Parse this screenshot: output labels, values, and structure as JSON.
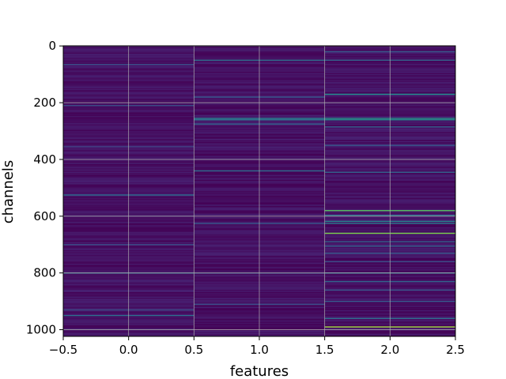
{
  "chart_data": {
    "type": "heatmap",
    "title": "",
    "xlabel": "features",
    "ylabel": "channels",
    "xlim": [
      -0.5,
      2.5
    ],
    "ylim": [
      1023.5,
      -0.5
    ],
    "n_channels": 1024,
    "n_features": 3,
    "grid": true,
    "colormap": "viridis",
    "xticks": [
      {
        "value": -0.5,
        "label": "−0.5"
      },
      {
        "value": 0.0,
        "label": "0.0"
      },
      {
        "value": 0.5,
        "label": "0.5"
      },
      {
        "value": 1.0,
        "label": "1.0"
      },
      {
        "value": 1.5,
        "label": "1.5"
      },
      {
        "value": 2.0,
        "label": "2.0"
      },
      {
        "value": 2.5,
        "label": "2.5"
      }
    ],
    "yticks": [
      {
        "value": 0,
        "label": "0"
      },
      {
        "value": 200,
        "label": "200"
      },
      {
        "value": 400,
        "label": "400"
      },
      {
        "value": 600,
        "label": "600"
      },
      {
        "value": 800,
        "label": "800"
      },
      {
        "value": 1000,
        "label": "1000"
      }
    ],
    "background_value_range": [
      0.0,
      0.12
    ],
    "highlights": [
      {
        "feature": 0,
        "channel": 65,
        "value": 0.3
      },
      {
        "feature": 0,
        "channel": 210,
        "value": 0.3
      },
      {
        "feature": 0,
        "channel": 355,
        "value": 0.25
      },
      {
        "feature": 0,
        "channel": 525,
        "value": 0.45
      },
      {
        "feature": 0,
        "channel": 700,
        "value": 0.3
      },
      {
        "feature": 0,
        "channel": 800,
        "value": 0.45
      },
      {
        "feature": 0,
        "channel": 930,
        "value": 0.3
      },
      {
        "feature": 0,
        "channel": 950,
        "value": 0.45
      },
      {
        "feature": 1,
        "channel": 50,
        "value": 0.45
      },
      {
        "feature": 1,
        "channel": 180,
        "value": 0.35
      },
      {
        "feature": 1,
        "channel": 255,
        "value": 0.55
      },
      {
        "feature": 1,
        "channel": 260,
        "value": 0.5
      },
      {
        "feature": 1,
        "channel": 275,
        "value": 0.4
      },
      {
        "feature": 1,
        "channel": 440,
        "value": 0.45
      },
      {
        "feature": 1,
        "channel": 625,
        "value": 0.35
      },
      {
        "feature": 1,
        "channel": 800,
        "value": 0.3
      },
      {
        "feature": 1,
        "channel": 910,
        "value": 0.3
      },
      {
        "feature": 2,
        "channel": 20,
        "value": 0.35
      },
      {
        "feature": 2,
        "channel": 50,
        "value": 0.4
      },
      {
        "feature": 2,
        "channel": 170,
        "value": 0.6
      },
      {
        "feature": 2,
        "channel": 255,
        "value": 0.65
      },
      {
        "feature": 2,
        "channel": 260,
        "value": 0.6
      },
      {
        "feature": 2,
        "channel": 285,
        "value": 0.4
      },
      {
        "feature": 2,
        "channel": 350,
        "value": 0.35
      },
      {
        "feature": 2,
        "channel": 445,
        "value": 0.4
      },
      {
        "feature": 2,
        "channel": 580,
        "value": 0.8
      },
      {
        "feature": 2,
        "channel": 597,
        "value": 0.5
      },
      {
        "feature": 2,
        "channel": 618,
        "value": 0.55
      },
      {
        "feature": 2,
        "channel": 625,
        "value": 0.5
      },
      {
        "feature": 2,
        "channel": 660,
        "value": 0.85
      },
      {
        "feature": 2,
        "channel": 690,
        "value": 0.4
      },
      {
        "feature": 2,
        "channel": 705,
        "value": 0.4
      },
      {
        "feature": 2,
        "channel": 730,
        "value": 0.35
      },
      {
        "feature": 2,
        "channel": 760,
        "value": 0.3
      },
      {
        "feature": 2,
        "channel": 800,
        "value": 0.5
      },
      {
        "feature": 2,
        "channel": 830,
        "value": 0.4
      },
      {
        "feature": 2,
        "channel": 860,
        "value": 0.35
      },
      {
        "feature": 2,
        "channel": 900,
        "value": 0.35
      },
      {
        "feature": 2,
        "channel": 960,
        "value": 0.45
      },
      {
        "feature": 2,
        "channel": 990,
        "value": 0.9
      }
    ]
  }
}
